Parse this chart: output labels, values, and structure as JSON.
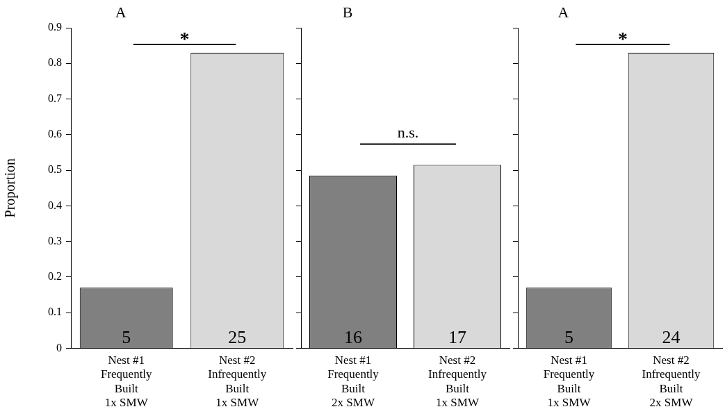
{
  "chart_data": [
    {
      "type": "bar",
      "title": "A",
      "ylabel": "Proportion",
      "categories": [
        "Nest #1\nFrequently\nBuilt\n1x SMW",
        "Nest #2\nInfrequently\nBuilt\n1x SMW"
      ],
      "values": [
        0.17,
        0.83
      ],
      "colors": [
        "#808080",
        "#d9d9d9"
      ],
      "ylim": [
        0,
        0.9
      ],
      "yticks": [
        0,
        0.1,
        0.2,
        0.3,
        0.4,
        0.5,
        0.6,
        0.7,
        0.8,
        0.9
      ],
      "annotations": [
        "*",
        {
          "text": "5",
          "x": "Nest #1\nFrequently\nBuilt\n1x SMW",
          "y": 0
        },
        {
          "text": "25",
          "x": "Nest #2\nInfrequently\nBuilt\n1x SMW",
          "y": 0
        }
      ],
      "legend": false
    },
    {
      "type": "bar",
      "title": "B",
      "categories": [
        "Nest #1\nFrequently\nBuilt\n2x SMW",
        "Nest #2\nInfrequently\nBuilt\n1x SMW"
      ],
      "values": [
        0.485,
        0.515
      ],
      "colors": [
        "#808080",
        "#d9d9d9"
      ],
      "ylim": [
        0,
        0.9
      ],
      "yticks": [
        0,
        0.1,
        0.2,
        0.3,
        0.4,
        0.5,
        0.6,
        0.7,
        0.8,
        0.9
      ],
      "annotations": [
        "n.s.",
        {
          "text": "16",
          "x": "Nest #1\nFrequently\nBuilt\n2x SMW",
          "y": 0
        },
        {
          "text": "17",
          "x": "Nest #2\nInfrequently\nBuilt\n1x SMW",
          "y": 0
        }
      ],
      "tick_labels": "x",
      "legend": false
    },
    {
      "type": "bar",
      "title": "A",
      "categories": [
        "Nest #1\nFrequently\nBuilt\n1x SMW",
        "Nest #2\nInfrequently\nBuilt\n2x SMW"
      ],
      "values": [
        0.17,
        0.83
      ],
      "colors": [
        "#808080",
        "#d9d9d9"
      ],
      "ylim": [
        0,
        0.9
      ],
      "yticks": [
        0,
        0.1,
        0.2,
        0.3,
        0.4,
        0.5,
        0.6,
        0.7,
        0.8,
        0.9
      ],
      "annotations": [
        "*",
        {
          "text": "5",
          "x": "Nest #1\nFrequently\nBuilt\n1x SMW",
          "y": 0
        },
        {
          "text": "24",
          "x": "Nest #2\nInfrequently\nBuilt\n2x SMW",
          "y": 0
        }
      ],
      "tick_labels": "x",
      "legend": false
    }
  ]
}
